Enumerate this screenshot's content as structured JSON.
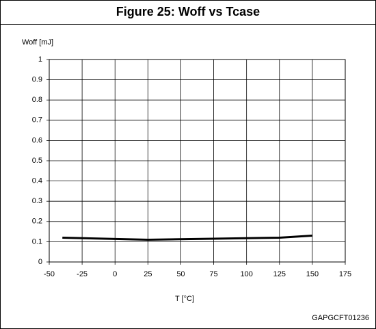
{
  "chart_data": {
    "type": "line",
    "title": "Figure 25: Woff vs Tcase",
    "y_label": "Woff [mJ]",
    "x_label": "T [°C]",
    "annotation": "GAPGCFT01236",
    "x": [
      -40,
      25,
      75,
      125,
      150
    ],
    "series": [
      {
        "color": "#000000",
        "values": [
          0.12,
          0.11,
          0.115,
          0.12,
          0.13
        ]
      }
    ],
    "xlim": [
      -50,
      175
    ],
    "xticks": [
      -50,
      -25,
      0,
      25,
      50,
      75,
      100,
      125,
      150,
      175
    ],
    "ylim": [
      0,
      1
    ],
    "yticks": [
      0,
      0.1,
      0.2,
      0.3,
      0.4,
      0.5,
      0.6,
      0.7,
      0.8,
      0.9,
      1
    ],
    "grid": true
  }
}
